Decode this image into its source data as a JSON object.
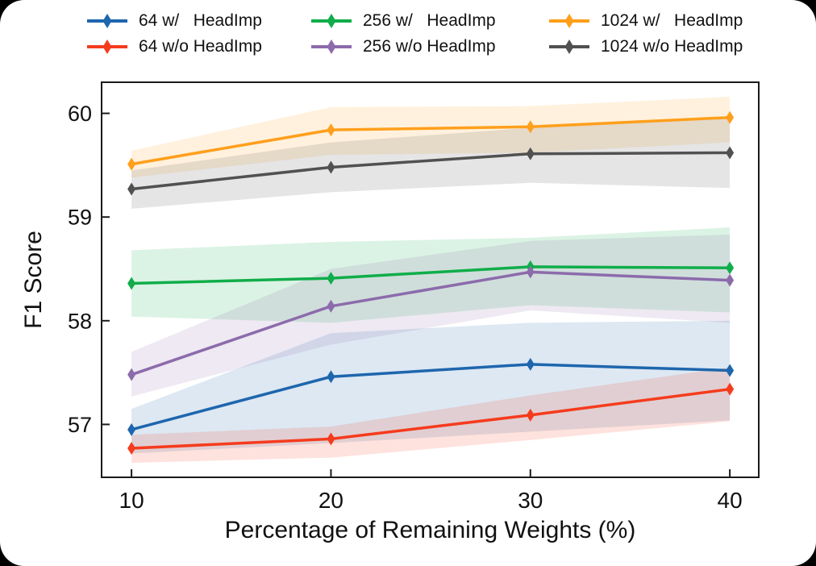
{
  "chart_data": {
    "type": "line",
    "title": "",
    "xlabel": "Percentage of Remaining Weights (%)",
    "ylabel": "F1 Score",
    "x": [
      10,
      20,
      30,
      40
    ],
    "xticks": [
      "10",
      "20",
      "30",
      "40"
    ],
    "yticks": [
      "57",
      "58",
      "59",
      "60"
    ],
    "xlim": [
      8.5,
      41.45
    ],
    "ylim": [
      56.49,
      60.3
    ],
    "grid": false,
    "legend_position": "top",
    "marker_style": "thin-diamond",
    "axis_color": "#1a1a1a",
    "series": [
      {
        "name": "64 w/   HeadImp",
        "color": "#1e66ad",
        "values": [
          56.95,
          57.46,
          57.58,
          57.52
        ],
        "band_lower": [
          56.72,
          56.82,
          56.93,
          57.04
        ],
        "band_upper": [
          57.15,
          57.88,
          57.98,
          58.0
        ]
      },
      {
        "name": "64 w/o HeadImp",
        "color": "#f53b1d",
        "values": [
          56.77,
          56.86,
          57.09,
          57.34
        ],
        "band_lower": [
          56.63,
          56.68,
          56.85,
          57.03
        ],
        "band_upper": [
          56.9,
          56.98,
          57.28,
          57.55
        ]
      },
      {
        "name": "256 w/   HeadImp",
        "color": "#10ad4a",
        "values": [
          58.36,
          58.41,
          58.52,
          58.51
        ],
        "band_lower": [
          58.04,
          57.98,
          58.15,
          58.08
        ],
        "band_upper": [
          58.68,
          58.76,
          58.8,
          58.9
        ]
      },
      {
        "name": "256 w/o HeadImp",
        "color": "#8c6bab",
        "values": [
          57.48,
          58.14,
          58.47,
          58.39
        ],
        "band_lower": [
          57.27,
          57.77,
          58.1,
          57.98
        ],
        "band_upper": [
          57.7,
          58.5,
          58.77,
          58.83
        ]
      },
      {
        "name": "1024 w/   HeadImp",
        "color": "#ff9f1c",
        "values": [
          59.51,
          59.84,
          59.87,
          59.96
        ],
        "band_lower": [
          59.38,
          59.6,
          59.62,
          59.72
        ],
        "band_upper": [
          59.64,
          60.06,
          60.07,
          60.16
        ]
      },
      {
        "name": "1024 w/o HeadImp",
        "color": "#515151",
        "values": [
          59.27,
          59.48,
          59.61,
          59.62
        ],
        "band_lower": [
          59.08,
          59.24,
          59.33,
          59.28
        ],
        "band_upper": [
          59.45,
          59.72,
          59.86,
          59.95
        ]
      }
    ],
    "band_opacity": 0.15
  }
}
